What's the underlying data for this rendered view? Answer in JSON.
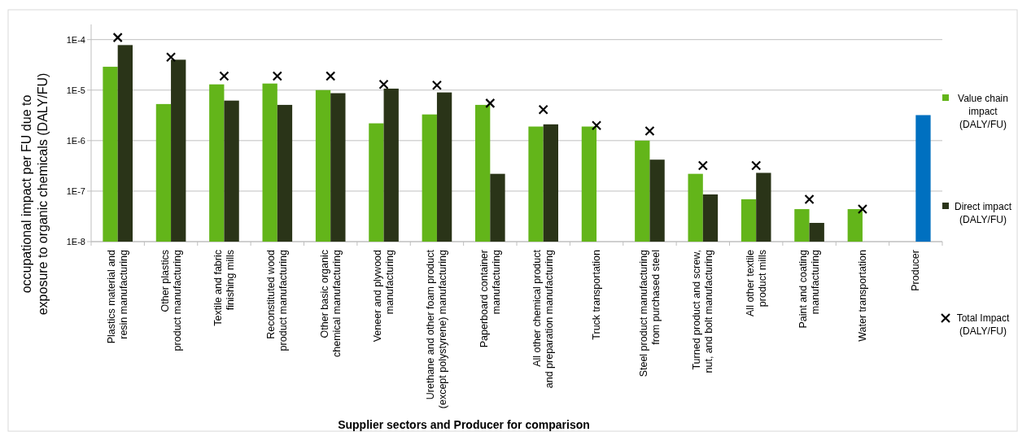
{
  "chart_data": {
    "type": "bar",
    "xlabel": "Supplier sectors and Producer for comparison",
    "ylabel": "occupational impact per FU due to exposure to organic chemicals (DALY/FU)",
    "categories": [
      "Plastics material and resin manufacturing",
      "Other plastics product manufacturing",
      "Textile and fabric finishing mills",
      "Reconstituted wood product manufacturing",
      "Other basic organic chemical manufacturing",
      "Veneer and plywood manufacturing",
      "Urethane and other foam product (except polystyrene) manufacturing",
      "Paperboard container manufacturing",
      "All other chemical product and preparation manufacturing",
      "Truck transportation",
      "Steel product manufacturing from purchased steel",
      "Turned product and screw, nut, and bolt manufacturing",
      "All other textile product mills",
      "Paint and coating manufacturing",
      "Water transportation",
      "Producer"
    ],
    "series": [
      {
        "name": "Value chain impact (DALY/FU)",
        "color": "#63b51a",
        "values": [
          2.9e-05,
          5.3e-06,
          1.3e-05,
          1.35e-05,
          1e-05,
          2.2e-06,
          3.3e-06,
          5.1e-06,
          1.9e-06,
          1.9e-06,
          1e-06,
          2.2e-07,
          6.9e-08,
          4.4e-08,
          4.4e-08,
          null
        ]
      },
      {
        "name": "Direct impact (DALY/FU)",
        "color": "#2a3418",
        "colors": [
          "#2a3418",
          "#2a3418",
          "#2a3418",
          "#2a3418",
          "#2a3418",
          "#2a3418",
          "#2a3418",
          "#2a3418",
          "#2a3418",
          "#2a3418",
          "#2a3418",
          "#2a3418",
          "#2a3418",
          "#2a3418",
          "#2a3418",
          "#0070c0"
        ],
        "values": [
          7.8e-05,
          4e-05,
          6.2e-06,
          5.1e-06,
          8.7e-06,
          1.07e-05,
          9e-06,
          2.2e-07,
          2.1e-06,
          null,
          4.2e-07,
          8.6e-08,
          2.3e-07,
          2.35e-08,
          null,
          3.2e-06
        ]
      },
      {
        "name": "Total Impact (DALY/FU)",
        "type": "scatter",
        "marker": "cross",
        "color": "#000000",
        "values": [
          0.00011,
          4.5e-05,
          1.9e-05,
          1.9e-05,
          1.9e-05,
          1.3e-05,
          1.25e-05,
          5.5e-06,
          4.1e-06,
          2e-06,
          1.55e-06,
          3.2e-07,
          3.2e-07,
          6.9e-08,
          4.4e-08,
          null
        ]
      }
    ],
    "log": "y",
    "ylim": [
      1e-08,
      0.0002
    ],
    "yticks": [
      {
        "value": 1e-08,
        "label": "1E-8"
      },
      {
        "value": 1e-07,
        "label": "1E-7"
      },
      {
        "value": 1e-06,
        "label": "1E-6"
      },
      {
        "value": 1e-05,
        "label": "1E-5"
      },
      {
        "value": 0.0001,
        "label": "1E-4"
      }
    ],
    "grid": "y",
    "legend": "right"
  }
}
